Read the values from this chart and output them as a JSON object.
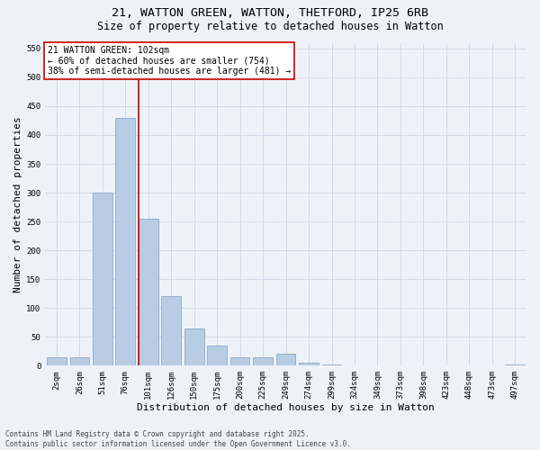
{
  "title_line1": "21, WATTON GREEN, WATTON, THETFORD, IP25 6RB",
  "title_line2": "Size of property relative to detached houses in Watton",
  "xlabel": "Distribution of detached houses by size in Watton",
  "ylabel": "Number of detached properties",
  "bar_color": "#b8cce4",
  "bar_edge_color": "#7aa0c4",
  "grid_color": "#d0d8e8",
  "background_color": "#eef2f8",
  "categories": [
    "2sqm",
    "26sqm",
    "51sqm",
    "76sqm",
    "101sqm",
    "126sqm",
    "150sqm",
    "175sqm",
    "200sqm",
    "225sqm",
    "249sqm",
    "274sqm",
    "299sqm",
    "324sqm",
    "349sqm",
    "373sqm",
    "398sqm",
    "423sqm",
    "448sqm",
    "473sqm",
    "497sqm"
  ],
  "values": [
    15,
    15,
    300,
    430,
    255,
    120,
    65,
    35,
    15,
    15,
    20,
    5,
    2,
    0,
    0,
    0,
    0,
    0,
    0,
    0,
    2
  ],
  "ylim": [
    0,
    560
  ],
  "yticks": [
    0,
    50,
    100,
    150,
    200,
    250,
    300,
    350,
    400,
    450,
    500,
    550
  ],
  "property_line_index": 4,
  "property_line_color": "#cc0000",
  "annotation_text": "21 WATTON GREEN: 102sqm\n← 60% of detached houses are smaller (754)\n38% of semi-detached houses are larger (481) →",
  "annotation_box_color": "#ffffff",
  "annotation_box_edge": "#cc0000",
  "footer_line1": "Contains HM Land Registry data © Crown copyright and database right 2025.",
  "footer_line2": "Contains public sector information licensed under the Open Government Licence v3.0.",
  "title_fontsize": 9.5,
  "subtitle_fontsize": 8.5,
  "tick_fontsize": 6.5,
  "label_fontsize": 8,
  "annotation_fontsize": 7,
  "footer_fontsize": 5.5
}
